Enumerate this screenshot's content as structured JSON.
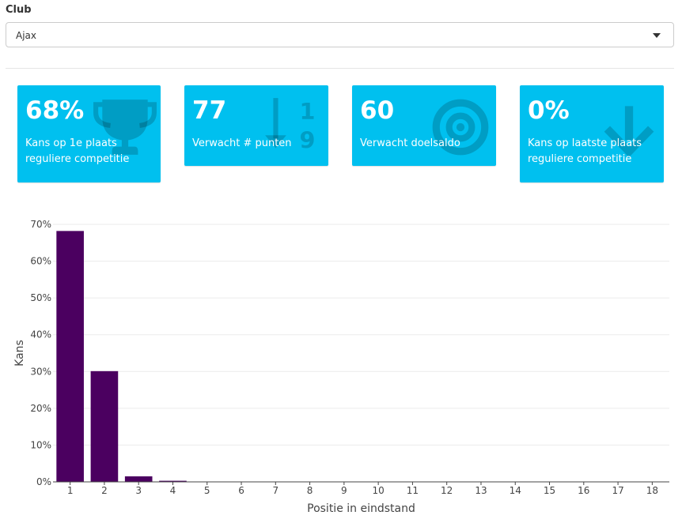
{
  "club_filter": {
    "label": "Club",
    "selected": "Ajax"
  },
  "value_boxes": [
    {
      "value": "68%",
      "subtitle": "Kans op 1e plaats reguliere competitie",
      "icon": "trophy-icon"
    },
    {
      "value": "77",
      "subtitle": "Verwacht # punten",
      "icon": "sort-numeric-down-icon"
    },
    {
      "value": "60",
      "subtitle": "Verwacht doelsaldo",
      "icon": "bullseye-icon"
    },
    {
      "value": "0%",
      "subtitle": "Kans op laatste plaats reguliere competitie",
      "icon": "arrow-down-icon"
    }
  ],
  "colors": {
    "value_box": "#00c0ef",
    "bar": "#4b0060"
  },
  "chart_data": {
    "type": "bar",
    "categories": [
      "1",
      "2",
      "3",
      "4",
      "5",
      "6",
      "7",
      "8",
      "9",
      "10",
      "11",
      "12",
      "13",
      "14",
      "15",
      "16",
      "17",
      "18"
    ],
    "values": [
      68.2,
      30.1,
      1.5,
      0.3,
      0,
      0,
      0,
      0,
      0,
      0,
      0,
      0,
      0,
      0,
      0,
      0,
      0,
      0
    ],
    "xlabel": "Positie in eindstand",
    "ylabel": "Kans",
    "ylim": [
      0,
      70
    ],
    "yticks": [
      0,
      10,
      20,
      30,
      40,
      50,
      60,
      70
    ],
    "ytick_labels": [
      "0%",
      "10%",
      "20%",
      "30%",
      "40%",
      "50%",
      "60%",
      "70%"
    ],
    "grid": true
  }
}
